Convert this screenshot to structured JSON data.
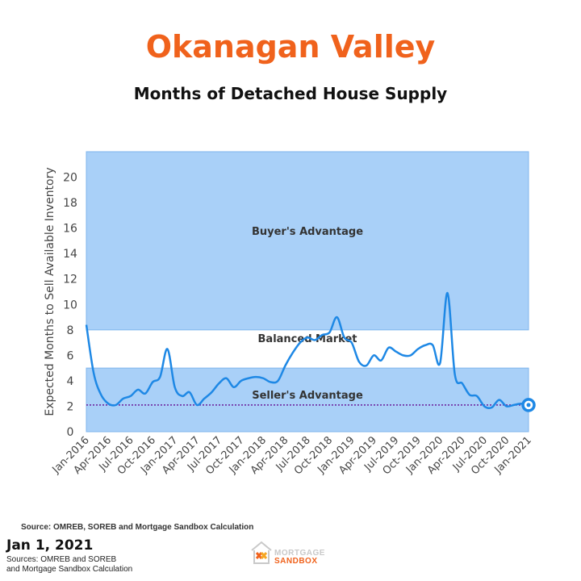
{
  "header": {
    "title": "Okanagan Valley",
    "subtitle": "Months of Detached House Supply"
  },
  "chart_data": {
    "type": "line",
    "ylabel": "Expected Months to Sell Available Inventory",
    "ylim": [
      0,
      22
    ],
    "y_ticks": [
      "0",
      "2",
      "4",
      "6",
      "8",
      "10",
      "12",
      "14",
      "16",
      "18",
      "20"
    ],
    "x_ticks": [
      "Jan-2016",
      "Apr-2016",
      "Jul-2016",
      "Oct-2016",
      "Jan-2017",
      "Apr-2017",
      "Jul-2017",
      "Oct-2017",
      "Jan-2018",
      "Apr-2018",
      "Jul-2018",
      "Oct-2018",
      "Jan-2019",
      "Apr-2019",
      "Jul-2019",
      "Oct-2019",
      "Jan-2020",
      "Apr-2020",
      "Jul-2020",
      "Oct-2020",
      "Jan-2021"
    ],
    "zones": [
      {
        "label": "Buyer's Advantage",
        "from": 8,
        "to": 22,
        "color": "#a9d0f8"
      },
      {
        "label": "Balanced Market",
        "from": 5,
        "to": 8,
        "color": "#ffffff"
      },
      {
        "label": "Seller's Advantage",
        "from": 0,
        "to": 5,
        "color": "#a9d0f8"
      }
    ],
    "reference_line": {
      "value": 2.1,
      "color": "#6a1b9a"
    },
    "series": [
      {
        "color": "#1e88e5",
        "x": [
          "Jan-2016",
          "Feb-2016",
          "Mar-2016",
          "Apr-2016",
          "May-2016",
          "Jun-2016",
          "Jul-2016",
          "Aug-2016",
          "Sep-2016",
          "Oct-2016",
          "Nov-2016",
          "Dec-2016",
          "Jan-2017",
          "Feb-2017",
          "Mar-2017",
          "Apr-2017",
          "May-2017",
          "Jun-2017",
          "Jul-2017",
          "Aug-2017",
          "Sep-2017",
          "Oct-2017",
          "Nov-2017",
          "Dec-2017",
          "Jan-2018",
          "Feb-2018",
          "Mar-2018",
          "Apr-2018",
          "May-2018",
          "Jun-2018",
          "Jul-2018",
          "Aug-2018",
          "Sep-2018",
          "Oct-2018",
          "Nov-2018",
          "Dec-2018",
          "Jan-2019",
          "Feb-2019",
          "Mar-2019",
          "Apr-2019",
          "May-2019",
          "Jun-2019",
          "Jul-2019",
          "Aug-2019",
          "Sep-2019",
          "Oct-2019",
          "Nov-2019",
          "Dec-2019",
          "Jan-2020",
          "Feb-2020",
          "Mar-2020",
          "Apr-2020",
          "May-2020",
          "Jun-2020",
          "Jul-2020",
          "Aug-2020",
          "Sep-2020",
          "Oct-2020",
          "Nov-2020",
          "Dec-2020",
          "Jan-2021"
        ],
        "values": [
          8.4,
          4.6,
          2.9,
          2.2,
          2.1,
          2.6,
          2.8,
          3.3,
          3.0,
          3.9,
          4.3,
          6.5,
          3.5,
          2.8,
          3.1,
          2.1,
          2.6,
          3.1,
          3.8,
          4.2,
          3.5,
          4.0,
          4.2,
          4.3,
          4.2,
          3.9,
          4.0,
          5.2,
          6.2,
          7.0,
          7.4,
          7.2,
          7.6,
          7.8,
          9.0,
          7.4,
          7.0,
          5.5,
          5.2,
          6.0,
          5.6,
          6.6,
          6.3,
          6.0,
          6.0,
          6.5,
          6.8,
          6.8,
          5.4,
          10.9,
          4.5,
          3.8,
          2.9,
          2.8,
          2.0,
          1.9,
          2.5,
          2.0,
          2.1,
          2.2,
          2.1
        ]
      }
    ]
  },
  "footer": {
    "chart_source": "Source: OMREB, SOREB and Mortgage Sandbox Calculation",
    "date": "Jan 1, 2021",
    "sources_line1": "Sources: OMREB and SOREB",
    "sources_line2": "and Mortgage Sandbox Calculation",
    "logo_line1": "MORTGAGE",
    "logo_line2": "SANDBOX"
  }
}
